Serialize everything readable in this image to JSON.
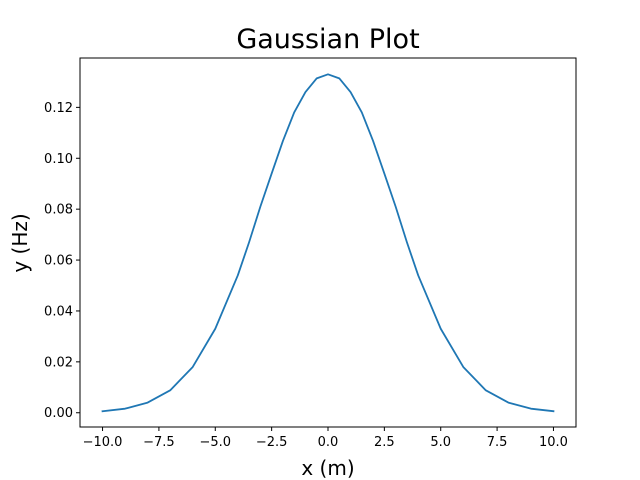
{
  "chart_data": {
    "type": "line",
    "title": "Gaussian Plot",
    "xlabel": "x (m)",
    "ylabel": "y (Hz)",
    "xlim": [
      -11.0,
      11.0
    ],
    "ylim": [
      -0.0056,
      0.1394
    ],
    "xticks": [
      -10.0,
      -7.5,
      -5.0,
      -2.5,
      0.0,
      2.5,
      5.0,
      7.5,
      10.0
    ],
    "xtick_labels": [
      "−10.0",
      "−7.5",
      "−5.0",
      "−2.5",
      "0.0",
      "2.5",
      "5.0",
      "7.5",
      "10.0"
    ],
    "yticks": [
      0.0,
      0.02,
      0.04,
      0.06,
      0.08,
      0.1,
      0.12
    ],
    "ytick_labels": [
      "0.00",
      "0.02",
      "0.04",
      "0.06",
      "0.08",
      "0.10",
      "0.12"
    ],
    "grid": false,
    "series": [
      {
        "color": "#1f77b4",
        "x": [
          -10,
          -9,
          -8,
          -7,
          -6,
          -5,
          -4,
          -3.5,
          -3,
          -2.5,
          -2,
          -1.5,
          -1,
          -0.5,
          0,
          0.5,
          1,
          1.5,
          2,
          2.5,
          3,
          3.5,
          4,
          5,
          6,
          7,
          8,
          9,
          10
        ],
        "y": [
          0.0006,
          0.0016,
          0.004,
          0.0088,
          0.018,
          0.033,
          0.054,
          0.067,
          0.081,
          0.094,
          0.1068,
          0.118,
          0.126,
          0.1314,
          0.133,
          0.1314,
          0.126,
          0.118,
          0.1068,
          0.094,
          0.081,
          0.067,
          0.054,
          0.033,
          0.018,
          0.0088,
          0.004,
          0.0016,
          0.0006
        ]
      }
    ]
  }
}
